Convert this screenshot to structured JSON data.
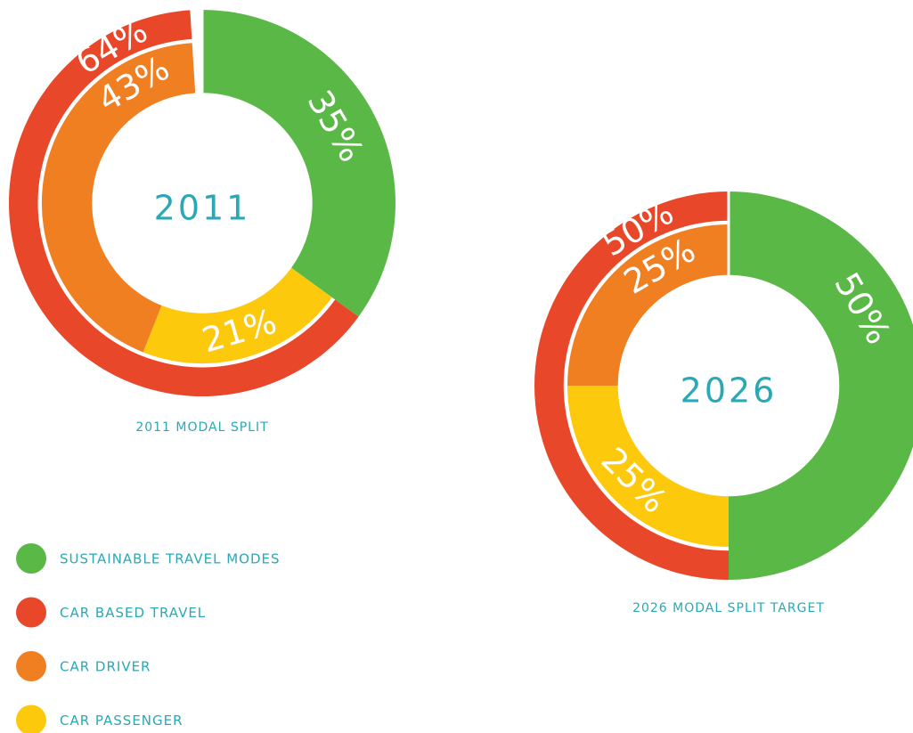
{
  "legend": [
    {
      "name": "SUSTAINABLE TRAVEL MODES",
      "color": "#5ab846"
    },
    {
      "name": "CAR BASED TRAVEL",
      "color": "#e8472a"
    },
    {
      "name": "CAR DRIVER",
      "color": "#f07f22"
    },
    {
      "name": "CAR PASSENGER",
      "color": "#fcc90d"
    }
  ],
  "chart_data": [
    {
      "type": "donut",
      "center_label": "2011",
      "caption": "2011 MODAL SPLIT",
      "values": [
        35,
        64,
        43,
        21
      ],
      "value_labels": [
        "35%",
        "64%",
        "43%",
        "21%"
      ]
    },
    {
      "type": "donut",
      "center_label": "2026",
      "caption": "2026 MODAL SPLIT TARGET",
      "values": [
        50,
        50,
        25,
        25
      ],
      "value_labels": [
        "50%",
        "50%",
        "25%",
        "25%"
      ]
    }
  ]
}
